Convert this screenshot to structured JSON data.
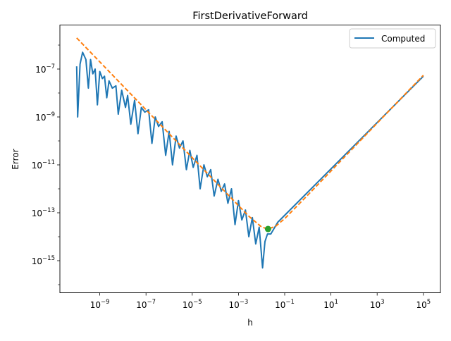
{
  "chart_data": {
    "type": "line",
    "title": "FirstDerivativeForward",
    "xlabel": "h",
    "ylabel": "Error",
    "xscale": "log",
    "yscale": "log",
    "xlim": [
      3e-11,
      400000.0
    ],
    "ylim": [
      4e-17,
      1.5e-05
    ],
    "grid": false,
    "legend": {
      "placement": "top-right",
      "entries": [
        "Computed"
      ]
    },
    "x_ticks": [
      {
        "value": 1e-09,
        "base": "10",
        "exp": "−9"
      },
      {
        "value": 1e-07,
        "base": "10",
        "exp": "−7"
      },
      {
        "value": 1e-05,
        "base": "10",
        "exp": "−5"
      },
      {
        "value": 0.001,
        "base": "10",
        "exp": "−3"
      },
      {
        "value": 0.1,
        "base": "10",
        "exp": "−1"
      },
      {
        "value": 10.0,
        "base": "10",
        "exp": "1"
      },
      {
        "value": 1000.0,
        "base": "10",
        "exp": "3"
      },
      {
        "value": 100000.0,
        "base": "10",
        "exp": "5"
      }
    ],
    "y_ticks": [
      {
        "value": 1e-07,
        "base": "10",
        "exp": "−7"
      },
      {
        "value": 1e-09,
        "base": "10",
        "exp": "−9"
      },
      {
        "value": 1e-11,
        "base": "10",
        "exp": "−11"
      },
      {
        "value": 1e-13,
        "base": "10",
        "exp": "−13"
      },
      {
        "value": 1e-15,
        "base": "10",
        "exp": "−15"
      }
    ],
    "series": [
      {
        "name": "Computed",
        "color": "#1f77b4",
        "style": "solid",
        "x": [
          1e-10,
          1.1e-10,
          1.4e-10,
          1.8e-10,
          2.5e-10,
          3.2e-10,
          4e-10,
          5e-10,
          6.3e-10,
          7.9e-10,
          1e-09,
          1.3e-09,
          1.6e-09,
          2e-09,
          2.5e-09,
          3.5e-09,
          5e-09,
          6.3e-09,
          8.9e-09,
          1.3e-08,
          1.6e-08,
          2.2e-08,
          3.2e-08,
          4.5e-08,
          6.3e-08,
          8.9e-08,
          1.3e-07,
          1.8e-07,
          2.5e-07,
          3.5e-07,
          5e-07,
          7.1e-07,
          1e-06,
          1.4e-06,
          2e-06,
          2.8e-06,
          4e-06,
          5.6e-06,
          7.9e-06,
          1.1e-05,
          1.6e-05,
          2.2e-05,
          3.2e-05,
          4.5e-05,
          6.3e-05,
          8.9e-05,
          0.00013,
          0.00018,
          0.00025,
          0.00035,
          0.0005,
          0.00071,
          0.001,
          0.0014,
          0.002,
          0.0028,
          0.004,
          0.0056,
          0.0079,
          0.011,
          0.014,
          0.018,
          0.025,
          0.05,
          100000.0
        ],
        "y": [
          1.3e-07,
          1e-09,
          1.6e-07,
          5e-07,
          2.5e-07,
          1.6e-08,
          2.5e-07,
          6.3e-08,
          1e-07,
          3.2e-09,
          7.9e-08,
          4e-08,
          5e-08,
          6.3e-09,
          3.2e-08,
          1.6e-08,
          2e-08,
          1.3e-09,
          1.3e-08,
          2.5e-09,
          7.9e-09,
          5e-10,
          5e-09,
          2e-10,
          2.5e-09,
          1.6e-09,
          2e-09,
          7.9e-11,
          1e-09,
          4e-10,
          6.3e-10,
          2.5e-11,
          2.5e-10,
          1e-11,
          1.6e-10,
          5e-11,
          1e-10,
          6.3e-12,
          4e-11,
          7.9e-12,
          2.5e-11,
          1e-12,
          1e-11,
          3.2e-12,
          6.3e-12,
          5e-13,
          2.5e-12,
          7.9e-13,
          1.6e-12,
          2.5e-13,
          1e-12,
          3.2e-14,
          3.2e-13,
          5e-14,
          1.3e-13,
          1e-14,
          6.3e-14,
          5e-15,
          2.5e-14,
          5e-16,
          6.3e-15,
          1.3e-14,
          1.3e-14,
          4e-14,
          5e-08
        ]
      },
      {
        "color": "#ff7f0e",
        "style": "dashed",
        "x": [
          1e-10,
          1e-09,
          1e-08,
          1e-07,
          1e-06,
          1e-05,
          0.0001,
          0.001,
          0.003,
          0.01,
          0.019,
          0.04,
          0.1,
          1,
          10,
          1000.0,
          100000.0
        ],
        "y": [
          2e-06,
          2e-07,
          2e-08,
          2e-09,
          2e-10,
          2e-11,
          2e-12,
          2e-13,
          6.8e-14,
          2.55e-14,
          2.1e-14,
          2.7e-14,
          5.7e-14,
          5.5e-13,
          5.5e-12,
          5.5e-10,
          5.5e-08
        ]
      }
    ],
    "markers": [
      {
        "x": 0.019,
        "y": 2.1e-14,
        "color": "#2ca02c"
      }
    ]
  }
}
